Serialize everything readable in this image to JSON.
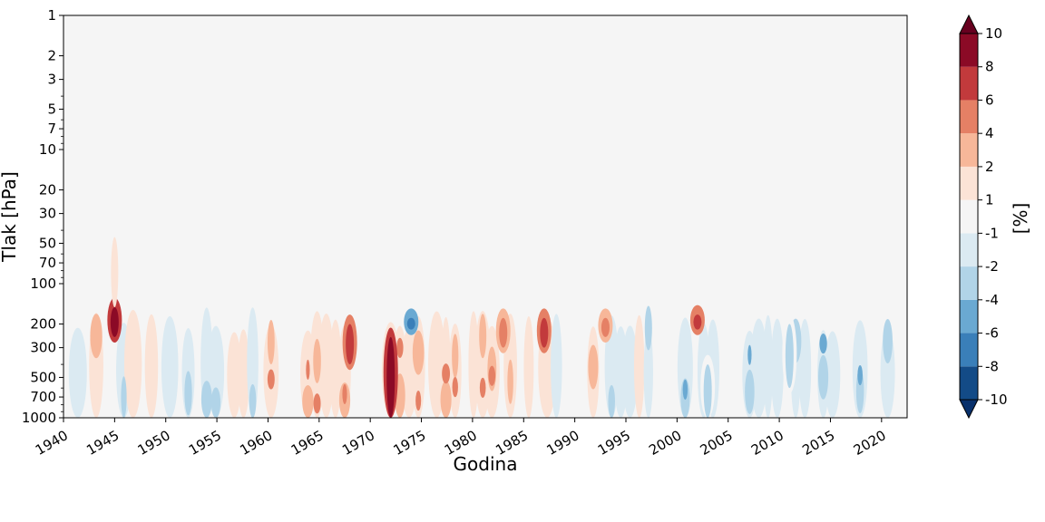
{
  "chart_data": {
    "type": "heatmap",
    "xlabel": "Godina",
    "ylabel": "Tlak [hPa]",
    "x_ticks": [
      "1940",
      "1945",
      "1950",
      "1955",
      "1960",
      "1965",
      "1970",
      "1975",
      "1980",
      "1985",
      "1990",
      "1995",
      "2000",
      "2005",
      "2010",
      "2015",
      "2020"
    ],
    "x_range": [
      1940,
      2022.5
    ],
    "y_ticks": [
      1,
      2,
      3,
      5,
      7,
      10,
      20,
      30,
      50,
      70,
      100,
      200,
      300,
      500,
      700,
      1000
    ],
    "y_range": [
      1,
      1000
    ],
    "y_scale": "log",
    "y_inverted": true,
    "grid": false,
    "colorbar": {
      "label": "[%]",
      "levels": [
        -10,
        -8,
        -6,
        -4,
        -2,
        -1,
        1,
        2,
        4,
        6,
        8,
        10
      ],
      "tick_labels": [
        "-10",
        "-8",
        "-6",
        "-4",
        "-2",
        "-1",
        "1",
        "2",
        "4",
        "6",
        "8",
        "10"
      ],
      "colors": [
        "#08306b",
        "#134b87",
        "#3a7fb9",
        "#6aa9d2",
        "#b1d4e8",
        "#dbeaf2",
        "#f5f5f5",
        "#fbe3d6",
        "#f7b799",
        "#e58065",
        "#c23a3c",
        "#8b0a26",
        "#67001f"
      ],
      "extend": "both",
      "placement": "right"
    },
    "background_value_class": "-1 to 1",
    "features": [
      {
        "year": 1945,
        "p_top": 150,
        "p_bottom": 250,
        "level": "8 to 10"
      },
      {
        "year": 1972,
        "p_top": 250,
        "p_bottom": 1000,
        "level": "8 to 10"
      },
      {
        "year": 1974,
        "p_top": 180,
        "p_bottom": 220,
        "level": "-8 to -6"
      },
      {
        "year": 1968,
        "p_top": 200,
        "p_bottom": 400,
        "level": "6 to 8"
      },
      {
        "year": 1983,
        "p_top": 180,
        "p_bottom": 300,
        "level": "4 to 6"
      },
      {
        "year": 1987,
        "p_top": 180,
        "p_bottom": 300,
        "level": "6 to 8"
      },
      {
        "year": 1993,
        "p_top": 180,
        "p_bottom": 250,
        "level": "4 to 6"
      },
      {
        "year": 2002,
        "p_top": 170,
        "p_bottom": 220,
        "level": "6 to 8"
      },
      {
        "year": 2011,
        "p_top": 200,
        "p_bottom": 600,
        "level": "-4 to -2"
      },
      {
        "year": 2003,
        "p_top": 400,
        "p_bottom": 1000,
        "level": "-4 to -2"
      }
    ]
  }
}
